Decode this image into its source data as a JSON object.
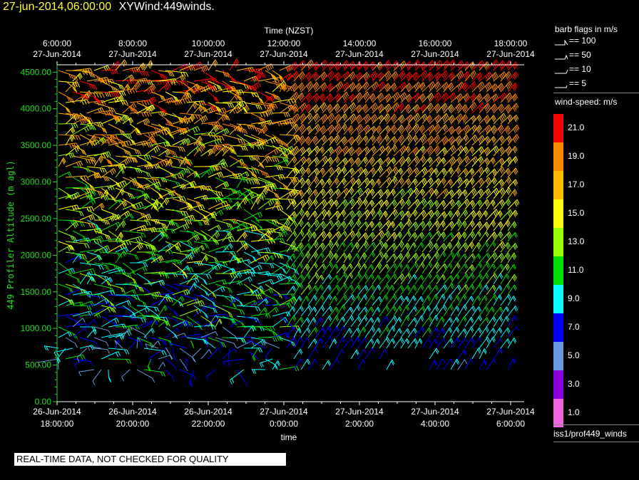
{
  "title": {
    "datetime": "27-jun-2014,06:00:00",
    "name": "XYWind:449winds."
  },
  "qc_banner": "REAL-TIME DATA, NOT CHECKED FOR QUALITY",
  "legend": {
    "flags_title": "barb flags in m/s",
    "flags": [
      {
        "label": "== 100",
        "value": 100
      },
      {
        "label": "== 50",
        "value": 50
      },
      {
        "label": "== 10",
        "value": 10
      },
      {
        "label": "== 5",
        "value": 5
      }
    ],
    "speed_title": "wind-speed: m/s",
    "speed_scale": [
      {
        "label": "21.0",
        "color": "#ff0000"
      },
      {
        "label": "19.0",
        "color": "#ff8800"
      },
      {
        "label": "17.0",
        "color": "#ffbb00"
      },
      {
        "label": "15.0",
        "color": "#ffff00"
      },
      {
        "label": "13.0",
        "color": "#99ff00"
      },
      {
        "label": "11.0",
        "color": "#00dd00"
      },
      {
        "label": "9.0",
        "color": "#00ffff"
      },
      {
        "label": "7.0",
        "color": "#0000ff"
      },
      {
        "label": "5.0",
        "color": "#6699dd"
      },
      {
        "label": "3.0",
        "color": "#8800dd"
      },
      {
        "label": "1.0",
        "color": "#ee66dd"
      }
    ],
    "source": "iss1/prof449_winds"
  },
  "chart_data": {
    "type": "wind-barb",
    "top_axis_title": "Time (NZST)",
    "top_ticks": [
      {
        "time": "6:00:00",
        "date": "27-Jun-2014"
      },
      {
        "time": "8:00:00",
        "date": "27-Jun-2014"
      },
      {
        "time": "10:00:00",
        "date": "27-Jun-2014"
      },
      {
        "time": "12:00:00",
        "date": "27-Jun-2014"
      },
      {
        "time": "14:00:00",
        "date": "27-Jun-2014"
      },
      {
        "time": "16:00:00",
        "date": "27-Jun-2014"
      },
      {
        "time": "18:00:00",
        "date": "27-Jun-2014"
      }
    ],
    "bottom_ticks": [
      {
        "date": "26-Jun-2014",
        "time": "18:00:00"
      },
      {
        "date": "26-Jun-2014",
        "time": "20:00:00"
      },
      {
        "date": "26-Jun-2014",
        "time": "22:00:00"
      },
      {
        "date": "27-Jun-2014",
        "time": "0:00:00"
      },
      {
        "date": "27-Jun-2014",
        "time": "2:00:00"
      },
      {
        "date": "27-Jun-2014",
        "time": "4:00:00"
      },
      {
        "date": "27-Jun-2014",
        "time": "6:00:00"
      }
    ],
    "xlabel": "time",
    "ylabel": "449 Profiler Altitude (m agl)",
    "yticks": [
      "0.00",
      "500.00",
      "1000.00",
      "1500.00",
      "2000.00",
      "2500.00",
      "3000.00",
      "3500.00",
      "4000.00",
      "4500.00"
    ],
    "ylim": [
      0,
      4600
    ],
    "xlim": [
      "26-Jun-2014 18:00:00",
      "27-Jun-2014 06:00:00"
    ],
    "grid": false,
    "speed_regimes": [
      {
        "from": "26-Jun-2014 18:00:00",
        "to": "27-Jun-2014 00:00:00",
        "low_levels": "7-11 m/s, variable direction",
        "upper_levels": "13-21 m/s"
      },
      {
        "from": "27-Jun-2014 00:00:00",
        "to": "27-Jun-2014 06:00:00",
        "low_levels": "7-9 m/s",
        "upper_levels": "15-21 m/s, steady"
      }
    ]
  }
}
